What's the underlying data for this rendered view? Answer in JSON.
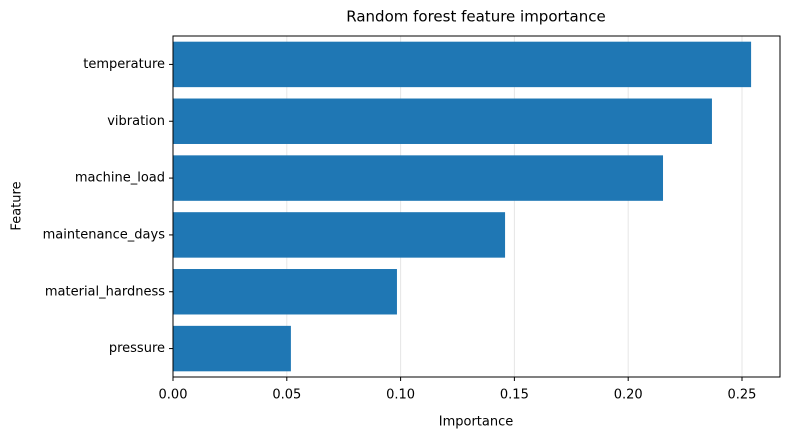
{
  "chart_data": {
    "type": "barh",
    "title": "Random forest feature importance",
    "x_label": "Importance",
    "y_label": "Feature",
    "categories": [
      "temperature",
      "vibration",
      "machine_load",
      "maintenance_days",
      "material_hardness",
      "pressure"
    ],
    "values": [
      0.254,
      0.2368,
      0.2153,
      0.1459,
      0.0984,
      0.0518
    ],
    "color": "#1f77b4",
    "xlim": [
      0,
      0.2667
    ],
    "xticks": [
      {
        "value": 0,
        "label": "0.00"
      },
      {
        "value": 0.05,
        "label": "0.05"
      },
      {
        "value": 0.1,
        "label": "0.10"
      },
      {
        "value": 0.15,
        "label": "0.15"
      },
      {
        "value": 0.2,
        "label": "0.20"
      },
      {
        "value": 0.25,
        "label": "0.25"
      }
    ],
    "grid": true
  }
}
